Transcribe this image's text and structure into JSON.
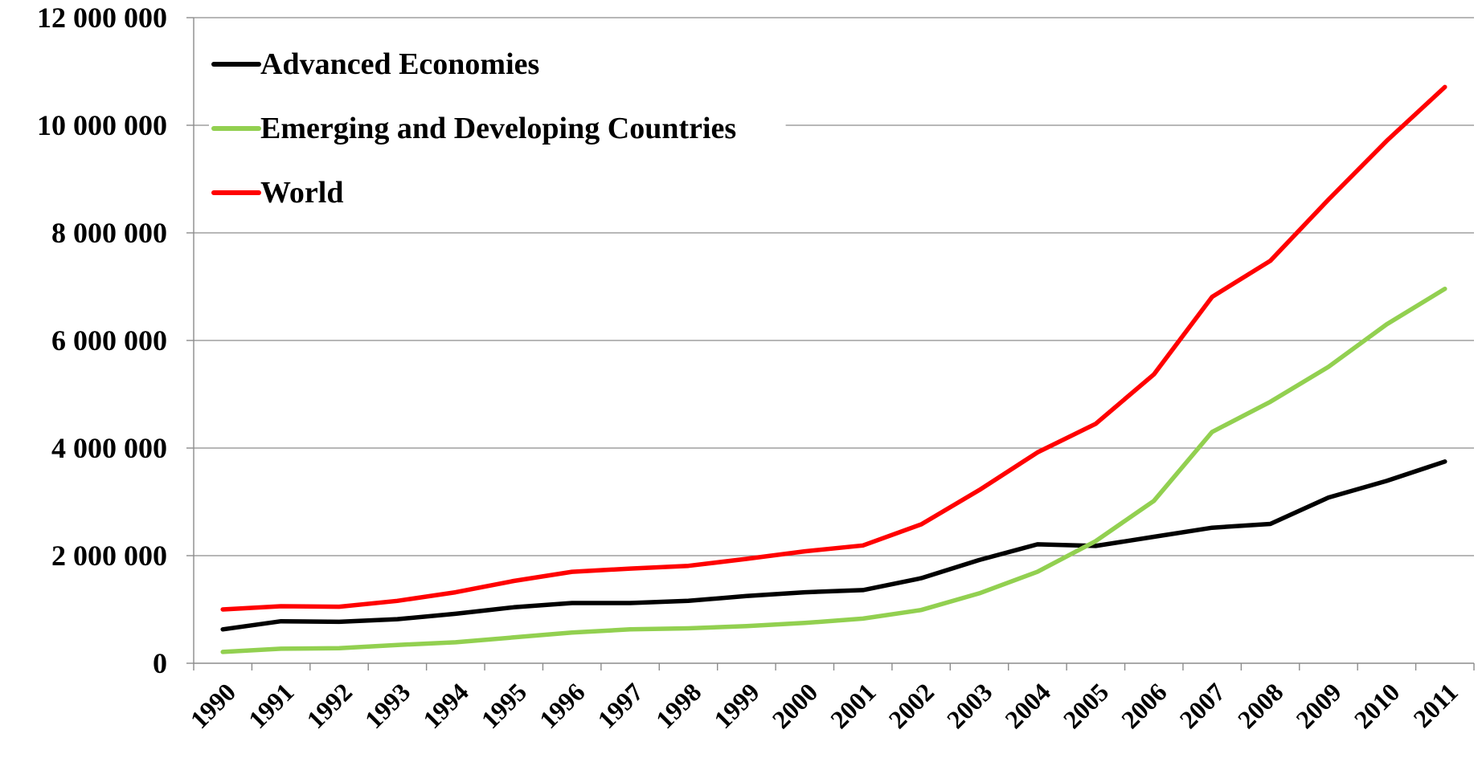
{
  "chart_data": {
    "type": "line",
    "title": "",
    "xlabel": "",
    "ylabel": "",
    "x": [
      "1990",
      "1991",
      "1992",
      "1993",
      "1994",
      "1995",
      "1996",
      "1997",
      "1998",
      "1999",
      "2000",
      "2001",
      "2002",
      "2003",
      "2004",
      "2005",
      "2006",
      "2007",
      "2008",
      "2009",
      "2010",
      "2011"
    ],
    "ylim": [
      0,
      12000000
    ],
    "yticks": [
      0,
      2000000,
      4000000,
      6000000,
      8000000,
      10000000,
      12000000
    ],
    "ytick_labels": [
      "0",
      "2 000 000",
      "4 000 000",
      "6 000 000",
      "8 000 000",
      "10 000 000",
      "12 000 000"
    ],
    "grid": true,
    "legend_position": "top-left",
    "series": [
      {
        "name": "Advanced Economies",
        "color": "#000000",
        "values": [
          630000,
          780000,
          770000,
          820000,
          920000,
          1040000,
          1120000,
          1120000,
          1160000,
          1250000,
          1320000,
          1360000,
          1580000,
          1920000,
          2210000,
          2180000,
          2350000,
          2520000,
          2590000,
          3080000,
          3390000,
          3750000
        ]
      },
      {
        "name": "Emerging and Developing Countries",
        "color": "#92D050",
        "values": [
          210000,
          270000,
          280000,
          340000,
          390000,
          480000,
          570000,
          630000,
          650000,
          690000,
          750000,
          830000,
          990000,
          1300000,
          1700000,
          2270000,
          3020000,
          4300000,
          4860000,
          5510000,
          6300000,
          6960000
        ]
      },
      {
        "name": "World",
        "color": "#FF0000",
        "values": [
          1000000,
          1060000,
          1050000,
          1160000,
          1320000,
          1530000,
          1700000,
          1760000,
          1810000,
          1940000,
          2080000,
          2190000,
          2580000,
          3220000,
          3920000,
          4450000,
          5370000,
          6810000,
          7480000,
          8620000,
          9710000,
          10710000
        ]
      }
    ]
  }
}
